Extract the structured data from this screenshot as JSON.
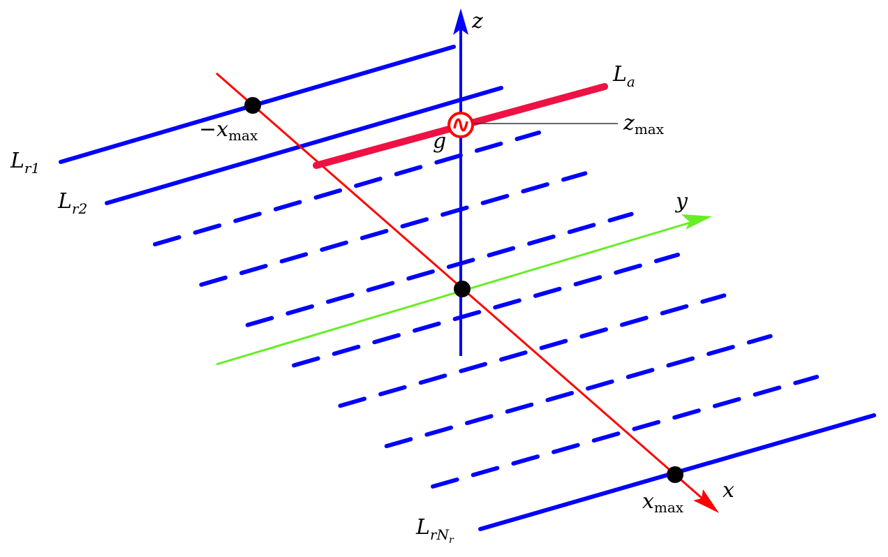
{
  "colors": {
    "receiver_lines": "#0000ff",
    "x_axis": "#ff0000",
    "y_axis": "#66ee22",
    "z_axis": "#0000ff",
    "array_line": "#ee1144",
    "points": "#000000"
  },
  "labels": {
    "z": "z",
    "y": "y",
    "x": "x",
    "La": {
      "main": "L",
      "sub": "a"
    },
    "zmax": {
      "main": "z",
      "sub": "max"
    },
    "g": "g",
    "neg_xmax": {
      "main": "−x",
      "sub": "max"
    },
    "xmax": {
      "main": "x",
      "sub": "max"
    },
    "Lr1": {
      "main": "L",
      "sub": "r1"
    },
    "Lr2": {
      "main": "L",
      "sub": "r2"
    },
    "LrNr": {
      "main": "L",
      "sub": "rN",
      "subsub": "r"
    }
  },
  "source_icon": "sine-source-icon",
  "dashed_line_count": 7
}
